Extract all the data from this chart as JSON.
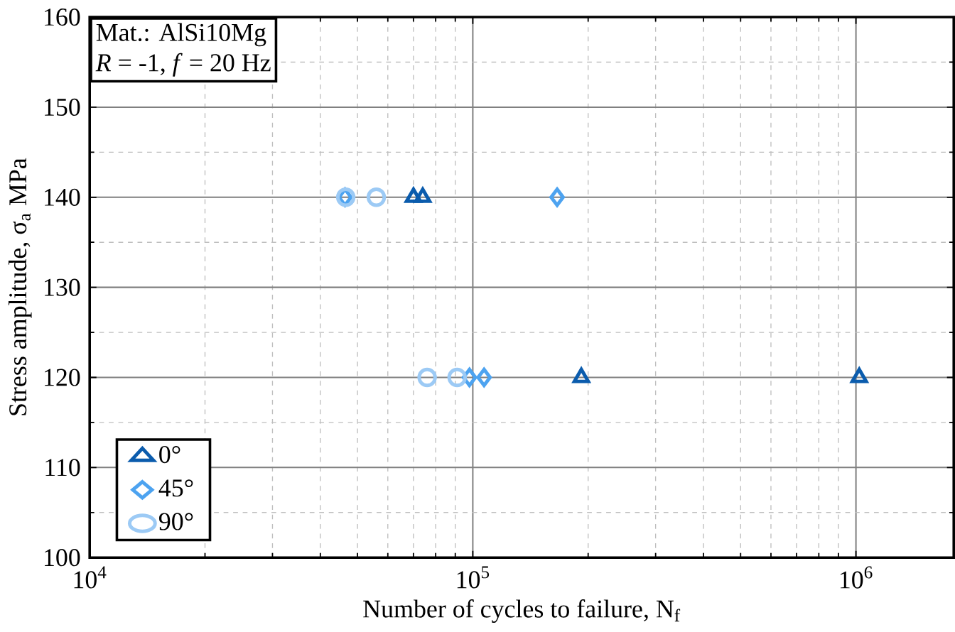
{
  "chart_data": {
    "type": "scatter",
    "xlabel": "Number of cycles to failure, N$_{f}$",
    "ylabel": "Stress amplitude, σ$_{a}$ MPa",
    "annotations": [
      "Mat.: AlSi10Mg",
      "*R* = -1, *f* = 20 Hz"
    ],
    "log": "x",
    "grid": true,
    "legend": "bottom left",
    "xlim": [
      10000,
      1800000
    ],
    "ylim": [
      100,
      160
    ],
    "xticks": [
      {
        "value": 10000,
        "label": "10$^{4}$"
      },
      {
        "value": 100000,
        "label": "10$^{5}$"
      },
      {
        "value": 1000000,
        "label": "10$^{6}$"
      }
    ],
    "yticks": [
      100,
      110,
      120,
      130,
      140,
      150,
      160
    ],
    "series": [
      {
        "name": "0°",
        "color": "#0b5cad",
        "marker": "triangle",
        "x": [
          70000,
          74000,
          192000,
          1020000
        ],
        "values": [
          140,
          140,
          120,
          120
        ]
      },
      {
        "name": "45°",
        "color": "#4da3f0",
        "marker": "diamond",
        "x": [
          46400,
          166000,
          98000,
          107000
        ],
        "values": [
          140,
          140,
          120,
          120
        ]
      },
      {
        "name": "90°",
        "color": "#9ccaf5",
        "marker": "circle",
        "x": [
          46600,
          56000,
          76000,
          91000
        ],
        "values": [
          140,
          140,
          120,
          120
        ]
      }
    ]
  }
}
